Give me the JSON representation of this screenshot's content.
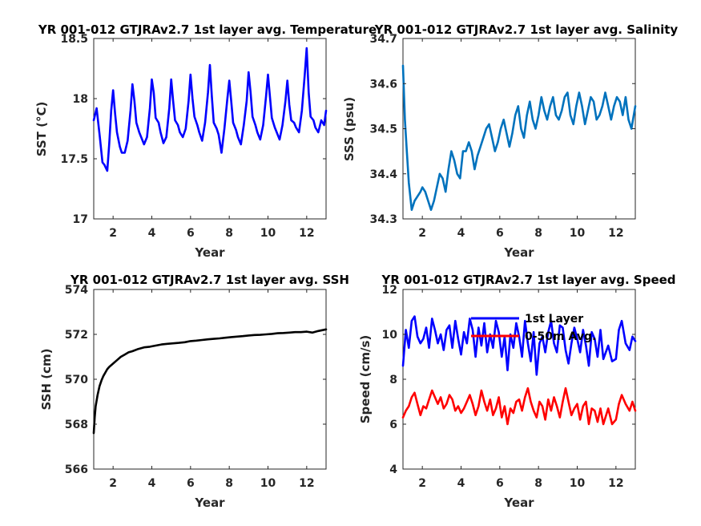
{
  "chart_data": [
    {
      "id": "sst",
      "type": "line",
      "title": "YR 001-012 GTJRAv2.7 1st layer avg. Temperature",
      "xlabel": "Year",
      "ylabel": "SST (°C)",
      "xlim": [
        1,
        13
      ],
      "ylim": [
        17,
        18.5
      ],
      "xticks": [
        2,
        4,
        6,
        8,
        10,
        12
      ],
      "yticks": [
        17,
        17.5,
        18,
        18.5
      ],
      "xtick_labels": [
        "2",
        "4",
        "6",
        "8",
        "10",
        "12"
      ],
      "ytick_labels": [
        "17",
        "17.5",
        "18",
        "18.5"
      ],
      "grid": true,
      "series": [
        {
          "color": "#0000ff",
          "x": [
            1.0,
            1.15,
            1.3,
            1.45,
            1.55,
            1.7,
            1.8,
            1.9,
            2.0,
            2.1,
            2.2,
            2.35,
            2.45,
            2.6,
            2.75,
            2.9,
            3.0,
            3.1,
            3.2,
            3.35,
            3.45,
            3.6,
            3.75,
            3.9,
            4.0,
            4.1,
            4.2,
            4.35,
            4.45,
            4.6,
            4.75,
            4.9,
            5.0,
            5.1,
            5.2,
            5.35,
            5.45,
            5.6,
            5.75,
            5.9,
            6.0,
            6.1,
            6.2,
            6.35,
            6.45,
            6.6,
            6.75,
            6.9,
            7.0,
            7.1,
            7.2,
            7.35,
            7.45,
            7.6,
            7.75,
            7.9,
            8.0,
            8.1,
            8.2,
            8.35,
            8.45,
            8.6,
            8.75,
            8.9,
            9.0,
            9.1,
            9.2,
            9.35,
            9.45,
            9.6,
            9.75,
            9.9,
            10.0,
            10.1,
            10.2,
            10.35,
            10.45,
            10.6,
            10.75,
            10.9,
            11.0,
            11.1,
            11.2,
            11.35,
            11.45,
            11.6,
            11.75,
            11.9,
            12.0,
            12.1,
            12.2,
            12.35,
            12.45,
            12.6,
            12.75,
            12.9,
            13.0
          ],
          "y": [
            17.82,
            17.92,
            17.7,
            17.47,
            17.45,
            17.4,
            17.62,
            17.9,
            18.07,
            17.88,
            17.72,
            17.6,
            17.55,
            17.55,
            17.65,
            17.9,
            18.12,
            17.98,
            17.8,
            17.72,
            17.68,
            17.62,
            17.68,
            17.92,
            18.16,
            18.05,
            17.84,
            17.8,
            17.72,
            17.63,
            17.68,
            17.92,
            18.16,
            17.98,
            17.82,
            17.78,
            17.72,
            17.68,
            17.75,
            17.98,
            18.2,
            18.0,
            17.85,
            17.78,
            17.72,
            17.65,
            17.8,
            18.05,
            18.28,
            18.02,
            17.8,
            17.75,
            17.7,
            17.55,
            17.75,
            18.0,
            18.15,
            17.98,
            17.8,
            17.74,
            17.68,
            17.62,
            17.78,
            17.98,
            18.22,
            18.05,
            17.85,
            17.78,
            17.72,
            17.66,
            17.78,
            18.02,
            18.2,
            18.02,
            17.84,
            17.76,
            17.72,
            17.66,
            17.78,
            17.98,
            18.15,
            17.95,
            17.82,
            17.8,
            17.76,
            17.72,
            17.9,
            18.2,
            18.42,
            18.05,
            17.85,
            17.82,
            17.76,
            17.72,
            17.82,
            17.78,
            17.9
          ]
        }
      ]
    },
    {
      "id": "sss",
      "type": "line",
      "title": "YR 001-012 GTJRAv2.7 1st layer avg. Salinity",
      "xlabel": "Year",
      "ylabel": "SSS (psu)",
      "xlim": [
        1,
        13
      ],
      "ylim": [
        34.3,
        34.7
      ],
      "xticks": [
        2,
        4,
        6,
        8,
        10,
        12
      ],
      "yticks": [
        34.3,
        34.4,
        34.5,
        34.6,
        34.7
      ],
      "xtick_labels": [
        "2",
        "4",
        "6",
        "8",
        "10",
        "12"
      ],
      "ytick_labels": [
        "34.3",
        "34.4",
        "34.5",
        "34.6",
        "34.7"
      ],
      "grid": true,
      "series": [
        {
          "color": "#0072bd",
          "x": [
            1.0,
            1.1,
            1.2,
            1.3,
            1.45,
            1.6,
            1.75,
            1.9,
            2.0,
            2.15,
            2.3,
            2.45,
            2.6,
            2.75,
            2.9,
            3.05,
            3.2,
            3.35,
            3.5,
            3.65,
            3.8,
            3.95,
            4.1,
            4.25,
            4.4,
            4.55,
            4.7,
            4.85,
            5.0,
            5.15,
            5.3,
            5.45,
            5.6,
            5.75,
            5.9,
            6.05,
            6.2,
            6.35,
            6.5,
            6.65,
            6.8,
            6.95,
            7.1,
            7.25,
            7.4,
            7.55,
            7.7,
            7.85,
            8.0,
            8.15,
            8.3,
            8.45,
            8.6,
            8.75,
            8.9,
            9.05,
            9.2,
            9.35,
            9.5,
            9.65,
            9.8,
            9.95,
            10.1,
            10.25,
            10.4,
            10.55,
            10.7,
            10.85,
            11.0,
            11.15,
            11.3,
            11.45,
            11.6,
            11.75,
            11.9,
            12.05,
            12.2,
            12.35,
            12.5,
            12.65,
            12.8,
            13.0
          ],
          "y": [
            34.64,
            34.52,
            34.45,
            34.38,
            34.32,
            34.34,
            34.35,
            34.36,
            34.37,
            34.36,
            34.34,
            34.32,
            34.34,
            34.37,
            34.4,
            34.39,
            34.36,
            34.41,
            34.45,
            34.43,
            34.4,
            34.39,
            34.45,
            34.45,
            34.47,
            34.45,
            34.41,
            34.44,
            34.46,
            34.48,
            34.5,
            34.51,
            34.48,
            34.45,
            34.47,
            34.5,
            34.52,
            34.49,
            34.46,
            34.49,
            34.53,
            34.55,
            34.5,
            34.48,
            34.53,
            34.56,
            34.52,
            34.5,
            34.53,
            34.57,
            34.54,
            34.52,
            34.55,
            34.57,
            34.53,
            34.52,
            34.54,
            34.57,
            34.58,
            34.53,
            34.51,
            34.55,
            34.58,
            34.55,
            34.51,
            34.54,
            34.57,
            34.56,
            34.52,
            34.53,
            34.55,
            34.58,
            34.55,
            34.52,
            34.55,
            34.57,
            34.56,
            34.53,
            34.57,
            34.52,
            34.5,
            34.55
          ]
        }
      ]
    },
    {
      "id": "ssh",
      "type": "line",
      "title": "YR 001-012 GTJRAv2.7 1st layer avg. SSH",
      "xlabel": "Year",
      "ylabel": "SSH (cm)",
      "xlim": [
        1,
        13
      ],
      "ylim": [
        566,
        574
      ],
      "xticks": [
        2,
        4,
        6,
        8,
        10,
        12
      ],
      "yticks": [
        566,
        568,
        570,
        572,
        574
      ],
      "xtick_labels": [
        "2",
        "4",
        "6",
        "8",
        "10",
        "12"
      ],
      "ytick_labels": [
        "566",
        "568",
        "570",
        "572",
        "574"
      ],
      "grid": true,
      "series": [
        {
          "color": "#000000",
          "x": [
            1.0,
            1.05,
            1.1,
            1.2,
            1.3,
            1.4,
            1.5,
            1.6,
            1.7,
            1.8,
            2.0,
            2.2,
            2.4,
            2.6,
            2.8,
            3.0,
            3.3,
            3.6,
            3.9,
            4.2,
            4.5,
            4.8,
            5.1,
            5.4,
            5.7,
            6.0,
            6.3,
            6.6,
            6.9,
            7.2,
            7.5,
            7.8,
            8.1,
            8.4,
            8.7,
            9.0,
            9.3,
            9.6,
            9.9,
            10.2,
            10.5,
            10.8,
            11.1,
            11.4,
            11.7,
            12.0,
            12.3,
            12.6,
            13.0
          ],
          "y": [
            567.6,
            568.3,
            568.8,
            569.3,
            569.7,
            569.95,
            570.15,
            570.3,
            570.45,
            570.55,
            570.7,
            570.85,
            571.0,
            571.1,
            571.2,
            571.25,
            571.35,
            571.42,
            571.45,
            571.5,
            571.55,
            571.58,
            571.6,
            571.62,
            571.65,
            571.7,
            571.72,
            571.75,
            571.78,
            571.8,
            571.82,
            571.85,
            571.88,
            571.9,
            571.92,
            571.95,
            571.97,
            571.98,
            572.0,
            572.02,
            572.05,
            572.06,
            572.08,
            572.1,
            572.1,
            572.12,
            572.08,
            572.15,
            572.22
          ]
        }
      ]
    },
    {
      "id": "speed",
      "type": "line",
      "title": "YR 001-012 GTJRAv2.7 1st layer avg. Speed",
      "xlabel": "Year",
      "ylabel": "Speed (cm/s)",
      "xlim": [
        1,
        13
      ],
      "ylim": [
        4,
        12
      ],
      "xticks": [
        2,
        4,
        6,
        8,
        10,
        12
      ],
      "yticks": [
        4,
        6,
        8,
        10,
        12
      ],
      "xtick_labels": [
        "2",
        "4",
        "6",
        "8",
        "10",
        "12"
      ],
      "ytick_labels": [
        "4",
        "6",
        "8",
        "10",
        "12"
      ],
      "grid": true,
      "legend": "top-center",
      "series": [
        {
          "name": "1st Layer",
          "color": "#0000ff",
          "x": [
            1.0,
            1.15,
            1.3,
            1.45,
            1.6,
            1.75,
            1.9,
            2.05,
            2.2,
            2.35,
            2.5,
            2.65,
            2.8,
            2.95,
            3.1,
            3.25,
            3.4,
            3.55,
            3.7,
            3.85,
            4.0,
            4.15,
            4.3,
            4.45,
            4.6,
            4.75,
            4.9,
            5.05,
            5.2,
            5.35,
            5.5,
            5.65,
            5.8,
            5.95,
            6.1,
            6.25,
            6.4,
            6.55,
            6.7,
            6.85,
            7.0,
            7.15,
            7.3,
            7.45,
            7.6,
            7.75,
            7.9,
            8.05,
            8.2,
            8.35,
            8.5,
            8.65,
            8.8,
            8.95,
            9.1,
            9.25,
            9.4,
            9.55,
            9.7,
            9.85,
            10.0,
            10.15,
            10.3,
            10.45,
            10.6,
            10.75,
            10.9,
            11.05,
            11.2,
            11.35,
            11.6,
            11.8,
            12.0,
            12.15,
            12.3,
            12.5,
            12.7,
            12.85,
            13.0
          ],
          "y": [
            8.6,
            10.2,
            9.4,
            10.6,
            10.8,
            9.9,
            9.6,
            9.8,
            10.3,
            9.4,
            10.7,
            10.2,
            9.6,
            10.0,
            9.3,
            10.2,
            10.4,
            9.4,
            10.6,
            9.8,
            9.1,
            10.1,
            9.6,
            10.7,
            10.2,
            9.0,
            10.3,
            9.5,
            10.5,
            9.2,
            10.0,
            9.4,
            10.6,
            10.1,
            9.0,
            9.9,
            8.4,
            10.0,
            9.4,
            10.5,
            9.9,
            9.0,
            10.6,
            9.6,
            8.8,
            10.1,
            8.2,
            9.6,
            9.9,
            9.2,
            10.1,
            10.6,
            9.6,
            9.2,
            10.4,
            10.3,
            9.3,
            8.7,
            9.6,
            10.3,
            9.8,
            9.2,
            10.2,
            9.5,
            8.6,
            10.1,
            9.8,
            9.0,
            10.2,
            8.9,
            9.5,
            8.8,
            8.9,
            10.2,
            10.6,
            9.6,
            9.3,
            9.9,
            9.7
          ]
        },
        {
          "name": "0-50m Avg.",
          "color": "#ff0000",
          "x": [
            1.0,
            1.15,
            1.3,
            1.45,
            1.6,
            1.75,
            1.9,
            2.05,
            2.2,
            2.35,
            2.5,
            2.65,
            2.8,
            2.95,
            3.1,
            3.25,
            3.4,
            3.55,
            3.7,
            3.85,
            4.0,
            4.15,
            4.3,
            4.45,
            4.6,
            4.75,
            4.9,
            5.05,
            5.2,
            5.35,
            5.5,
            5.65,
            5.8,
            5.95,
            6.1,
            6.25,
            6.4,
            6.55,
            6.7,
            6.85,
            7.0,
            7.15,
            7.3,
            7.45,
            7.6,
            7.75,
            7.9,
            8.05,
            8.2,
            8.35,
            8.5,
            8.65,
            8.8,
            8.95,
            9.1,
            9.25,
            9.4,
            9.55,
            9.7,
            9.85,
            10.0,
            10.15,
            10.3,
            10.45,
            10.6,
            10.75,
            10.9,
            11.05,
            11.2,
            11.35,
            11.6,
            11.8,
            12.0,
            12.15,
            12.3,
            12.5,
            12.7,
            12.85,
            13.0
          ],
          "y": [
            6.3,
            6.6,
            6.8,
            7.2,
            7.4,
            6.9,
            6.4,
            6.8,
            6.7,
            7.1,
            7.5,
            7.2,
            6.9,
            7.2,
            6.7,
            6.9,
            7.3,
            7.1,
            6.6,
            6.8,
            6.5,
            6.7,
            7.0,
            7.3,
            6.9,
            6.4,
            6.8,
            7.5,
            7.0,
            6.6,
            7.1,
            6.4,
            6.7,
            7.2,
            6.3,
            6.8,
            6.0,
            6.7,
            6.5,
            7.0,
            7.1,
            6.6,
            7.2,
            7.6,
            7.0,
            6.6,
            6.3,
            7.0,
            6.8,
            6.2,
            7.1,
            6.6,
            7.2,
            6.8,
            6.3,
            7.0,
            7.6,
            7.0,
            6.4,
            6.7,
            6.9,
            6.2,
            6.8,
            7.0,
            6.0,
            6.7,
            6.6,
            6.1,
            6.7,
            6.0,
            6.7,
            6.0,
            6.2,
            6.9,
            7.3,
            6.9,
            6.6,
            7.0,
            6.6
          ]
        }
      ]
    }
  ]
}
